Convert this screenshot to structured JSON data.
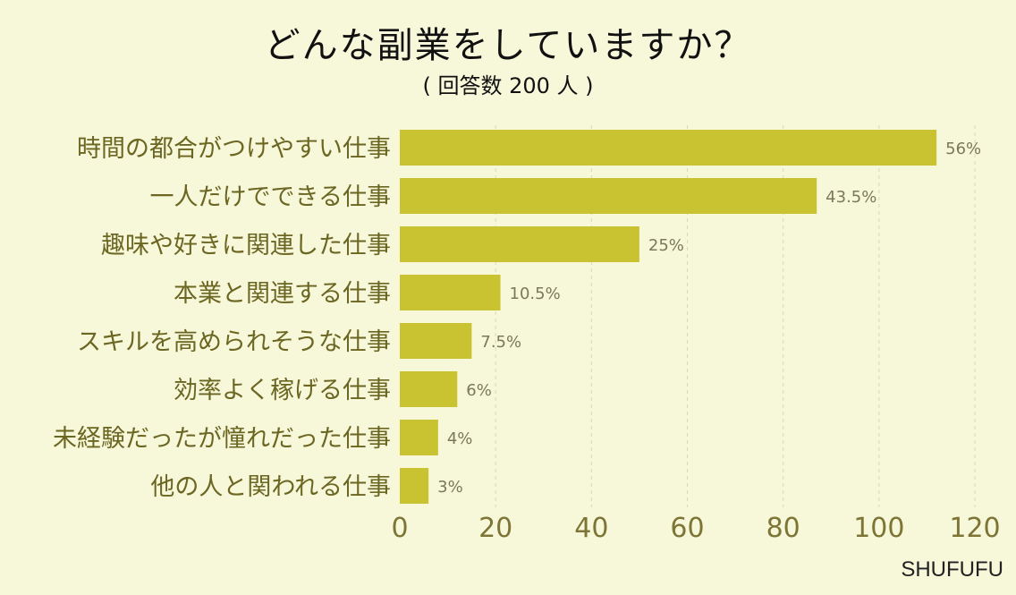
{
  "title": "どんな副業をしていますか？",
  "subtitle": "( 回答数 200 人 )",
  "watermark": "SHUFUFU",
  "colors": {
    "background": "#f7f7d9",
    "bar": "#c9c332",
    "category_text": "#6b6622",
    "tick_text": "#7c7535",
    "value_text": "#7a7a5a",
    "grid": "#dadab8"
  },
  "chart_data": {
    "type": "bar",
    "orientation": "horizontal",
    "title": "どんな副業をしていますか？",
    "subtitle": "( 回答数 200 人 )",
    "categories": [
      "時間の都合がつけやすい仕事",
      "一人だけでできる仕事",
      "趣味や好きに関連した仕事",
      "本業と関連する仕事",
      "スキルを高められそうな仕事",
      "効率よく稼げる仕事",
      "未経験だったが憧れだった仕事",
      "他の人と関われる仕事"
    ],
    "values": [
      112,
      87,
      50,
      21,
      15,
      12,
      8,
      6
    ],
    "value_labels": [
      "56%",
      "43.5%",
      "25%",
      "10.5%",
      "7.5%",
      "6%",
      "4%",
      "3%"
    ],
    "xlim": [
      0,
      120
    ],
    "xticks": [
      "0",
      "20",
      "40",
      "60",
      "80",
      "100",
      "120"
    ],
    "grid": true,
    "legend": "none"
  }
}
